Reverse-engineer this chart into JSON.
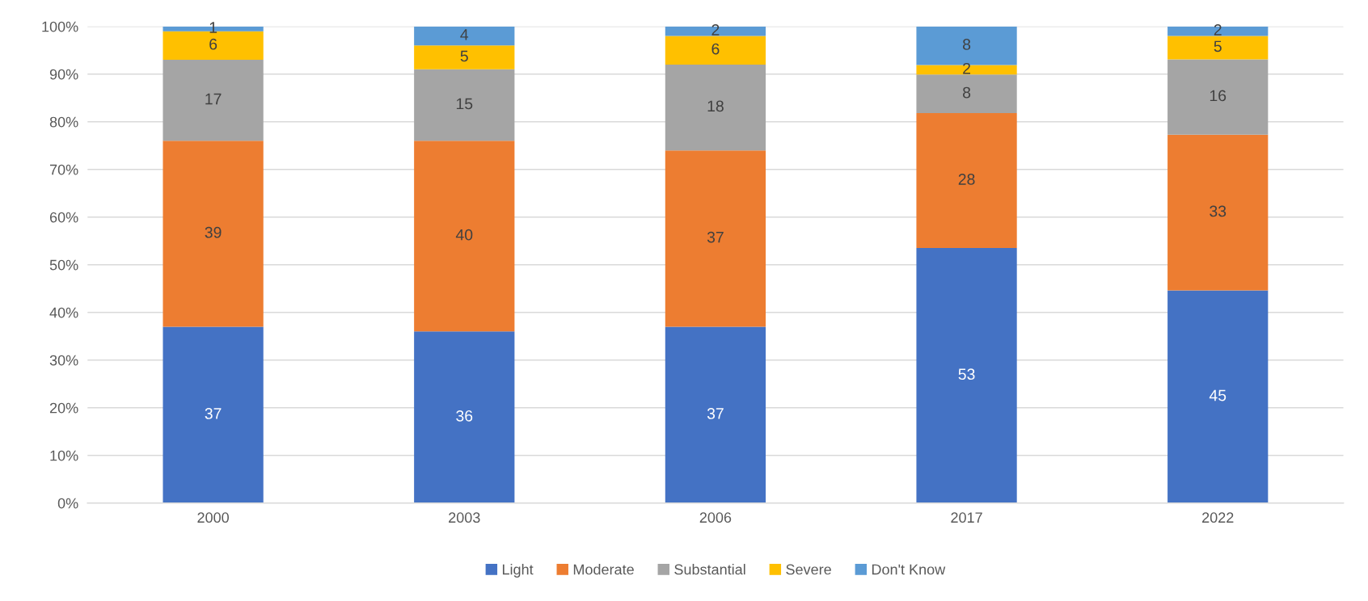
{
  "chart_data": {
    "type": "bar",
    "stacked": true,
    "categories": [
      "2000",
      "2003",
      "2006",
      "2017",
      "2022"
    ],
    "series": [
      {
        "name": "Light",
        "color": "#4472c4",
        "values": [
          37,
          36,
          37,
          53.5,
          44.6
        ],
        "value_labels": [
          "37",
          "36",
          "37",
          "53",
          "45"
        ]
      },
      {
        "name": "Moderate",
        "color": "#ed7d31",
        "values": [
          39,
          40,
          37,
          28.3,
          32.7
        ],
        "value_labels": [
          "39",
          "40",
          "37",
          "28",
          "33"
        ]
      },
      {
        "name": "Substantial",
        "color": "#a5a5a5",
        "values": [
          17,
          15,
          18,
          8.1,
          15.8
        ],
        "value_labels": [
          "17",
          "15",
          "18",
          "8",
          "16"
        ]
      },
      {
        "name": "Severe",
        "color": "#ffc000",
        "values": [
          6,
          5,
          6,
          2.0,
          4.9
        ],
        "value_labels": [
          "6",
          "5",
          "6",
          "2",
          "5"
        ]
      },
      {
        "name": "Don't Know",
        "color": "#5b9bd5",
        "values": [
          1,
          4,
          2,
          8.1,
          2.0
        ],
        "value_labels": [
          "1",
          "4",
          "2",
          "8",
          "2"
        ]
      }
    ],
    "ylim": [
      0,
      100
    ],
    "yticks": [
      {
        "value": 0,
        "label": "0%"
      },
      {
        "value": 10,
        "label": "10%"
      },
      {
        "value": 20,
        "label": "20%"
      },
      {
        "value": 30,
        "label": "30%"
      },
      {
        "value": 40,
        "label": "40%"
      },
      {
        "value": 50,
        "label": "50%"
      },
      {
        "value": 60,
        "label": "60%"
      },
      {
        "value": 70,
        "label": "70%"
      },
      {
        "value": 80,
        "label": "80%"
      },
      {
        "value": 90,
        "label": "90%"
      },
      {
        "value": 100,
        "label": "100%"
      }
    ],
    "grid": "y",
    "legend": "bottom"
  }
}
